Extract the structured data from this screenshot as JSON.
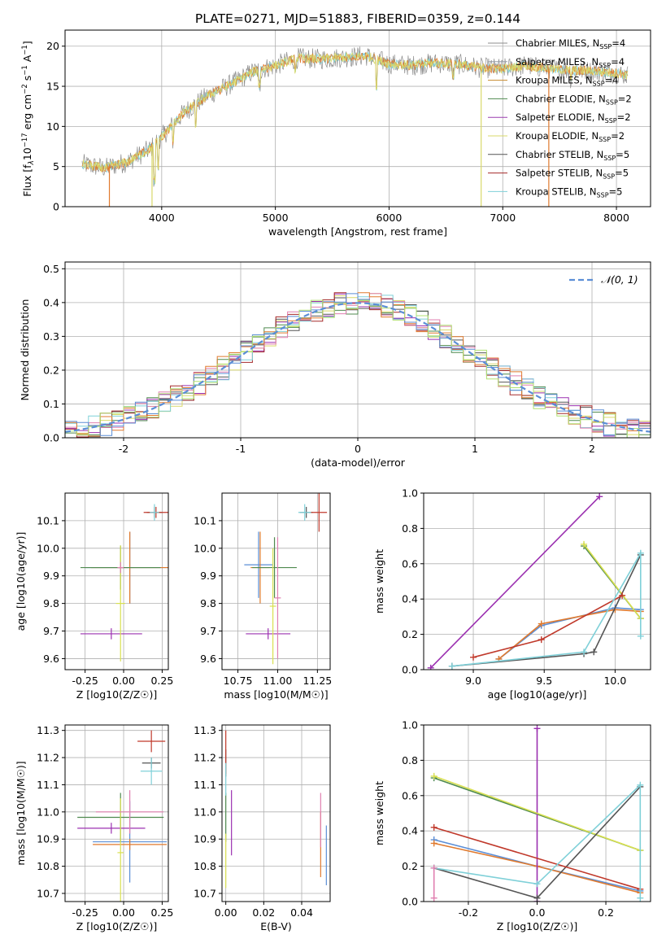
{
  "figure": {
    "title": "PLATE=0271, MJD=51883, FIBERID=0359, z=0.144"
  },
  "colors": {
    "series": [
      "#8c8c8c",
      "#9aa0a8",
      "#c68a2e",
      "#4f8a4f",
      "#9b3fb0",
      "#d9d96a",
      "#555555",
      "#a52a2a",
      "#7fd0d8"
    ],
    "gaussian": "#5b8ed6",
    "hist": [
      "#4f8a4f",
      "#9b30b0",
      "#d9d96a",
      "#555555",
      "#a52a2a",
      "#7fd0d8",
      "#e07fb0",
      "#e07a2e",
      "#5b8ed6",
      "#b0e070"
    ],
    "scatter": [
      "#5b8ed6",
      "#e07a2e",
      "#4f8a4f",
      "#9b30b0",
      "#d9e050",
      "#555555",
      "#c0392b",
      "#7fd0d8",
      "#e07fb0",
      "#b0e070"
    ]
  },
  "chart_data": [
    {
      "id": "spectrum",
      "type": "line",
      "title": "PLATE=0271, MJD=51883, FIBERID=0359, z=0.144",
      "xlabel": "wavelength [Angstrom, rest frame]",
      "ylabel": "Flux [f_λ 10^-17 erg cm^-2 s^-1 A^-1]",
      "xlim": [
        3150,
        8300
      ],
      "ylim": [
        0,
        22
      ],
      "xticks": [
        4000,
        5000,
        6000,
        7000,
        8000
      ],
      "yticks": [
        0,
        5,
        10,
        15,
        20
      ],
      "series": [
        {
          "name": "Chabrier MILES, N_SSP=4"
        },
        {
          "name": "Salpeter MILES, N_SSP=4"
        },
        {
          "name": "Kroupa MILES, N_SSP=4"
        },
        {
          "name": "Chabrier ELODIE, N_SSP=2"
        },
        {
          "name": "Salpeter ELODIE, N_SSP=2"
        },
        {
          "name": "Kroupa ELODIE, N_SSP=2"
        },
        {
          "name": "Chabrier STELIB, N_SSP=5"
        },
        {
          "name": "Salpeter STELIB, N_SSP=5"
        },
        {
          "name": "Kroupa STELIB, N_SSP=5"
        }
      ],
      "continuum": {
        "x": [
          3300,
          3500,
          3700,
          3900,
          4000,
          4200,
          4400,
          4600,
          4800,
          5000,
          5200,
          5400,
          5600,
          5800,
          6000,
          6200,
          6400,
          6600,
          6800,
          7000,
          7200,
          7400,
          7600,
          7800,
          8000,
          8100
        ],
        "y": [
          5.3,
          4.8,
          5.6,
          7.2,
          8.7,
          11.8,
          13.8,
          15.2,
          16.8,
          17.6,
          18.5,
          18.4,
          18.6,
          18.8,
          17.8,
          17.6,
          17.9,
          17.8,
          17.3,
          17.2,
          17.6,
          17.2,
          17.0,
          16.9,
          16.6,
          16.4
        ]
      }
    },
    {
      "id": "residuals",
      "type": "histogram",
      "xlabel": "(data-model)/error",
      "ylabel": "Normed distribution",
      "xlim": [
        -2.5,
        2.5
      ],
      "ylim": [
        0,
        0.52
      ],
      "xticks": [
        -2,
        -1,
        0,
        1,
        2
      ],
      "yticks": [
        0.0,
        0.1,
        0.2,
        0.3,
        0.4,
        0.5
      ],
      "legend": "𝒩(0, 1)",
      "bin_width": 0.1,
      "bin_start": -2.5
    },
    {
      "id": "age-vs-Z",
      "type": "scatter",
      "xlabel": "Z [log10(Z/Z☉)]",
      "ylabel": "age  [log10(age/yr)]",
      "xlim": [
        -0.38,
        0.29
      ],
      "ylim": [
        9.56,
        10.2
      ],
      "xticks": [
        -0.25,
        0.0,
        0.25
      ],
      "yticks": [
        9.6,
        9.7,
        9.8,
        9.9,
        10.0,
        10.1
      ],
      "points": [
        {
          "x": 0.04,
          "y": 9.93,
          "xerr": 0.29,
          "yerr": 0.13
        },
        {
          "x": 0.04,
          "y": 9.93,
          "xerr": 0.25,
          "yerr": 0.13
        },
        {
          "x": -0.02,
          "y": 9.93,
          "xerr": 0.26,
          "yerr": 0.08
        },
        {
          "x": -0.08,
          "y": 9.69,
          "xerr": 0.2,
          "yerr": 0.02
        },
        {
          "x": -0.02,
          "y": 9.8,
          "xerr": 0.03,
          "yerr": 0.21
        },
        {
          "x": 0.2,
          "y": 10.13,
          "xerr": 0.05,
          "yerr": 0.02
        },
        {
          "x": 0.21,
          "y": 10.13,
          "xerr": 0.08,
          "yerr": 0.02
        },
        {
          "x": 0.2,
          "y": 10.13,
          "xerr": 0.03,
          "yerr": 0.03
        },
        {
          "x": -0.02,
          "y": 9.93,
          "xerr": 0.02,
          "yerr": 0.02
        }
      ]
    },
    {
      "id": "age-vs-mass",
      "type": "scatter",
      "xlabel": "mass [log10(M/M☉)]",
      "ylabel": "",
      "xlim": [
        10.65,
        11.33
      ],
      "ylim": [
        9.56,
        10.2
      ],
      "xticks": [
        10.75,
        11.0,
        11.25
      ],
      "yticks": [
        9.6,
        9.7,
        9.8,
        9.9,
        10.0,
        10.1
      ],
      "points": [
        {
          "x": 10.88,
          "y": 9.94,
          "xerr": 0.09,
          "yerr": 0.12
        },
        {
          "x": 10.89,
          "y": 9.93,
          "xerr": 0.06,
          "yerr": 0.13
        },
        {
          "x": 10.98,
          "y": 9.93,
          "xerr": 0.14,
          "yerr": 0.11
        },
        {
          "x": 10.94,
          "y": 9.69,
          "xerr": 0.14,
          "yerr": 0.02
        },
        {
          "x": 10.97,
          "y": 9.79,
          "xerr": 0.02,
          "yerr": 0.21
        },
        {
          "x": 11.18,
          "y": 10.13,
          "xerr": 0.04,
          "yerr": 0.02
        },
        {
          "x": 11.26,
          "y": 10.13,
          "xerr": 0.05,
          "yerr": 0.07
        },
        {
          "x": 11.17,
          "y": 10.13,
          "xerr": 0.04,
          "yerr": 0.03
        },
        {
          "x": 11.0,
          "y": 9.82,
          "xerr": 0.02,
          "yerr": 0.22
        }
      ]
    },
    {
      "id": "weight-vs-age",
      "type": "line",
      "xlabel": "age  [log10(age/yr)]",
      "ylabel": "mass weight",
      "xlim": [
        8.65,
        10.25
      ],
      "ylim": [
        0,
        1
      ],
      "xticks": [
        9.0,
        9.5,
        10.0
      ],
      "yticks": [
        0.0,
        0.2,
        0.4,
        0.6,
        0.8,
        1.0
      ],
      "series": [
        {
          "x": [
            9.18,
            9.48,
            10.0,
            10.18
          ],
          "y": [
            0.06,
            0.25,
            0.35,
            0.34
          ]
        },
        {
          "x": [
            9.18,
            9.48,
            10.0,
            10.18
          ],
          "y": [
            0.06,
            0.26,
            0.34,
            0.33
          ]
        },
        {
          "x": [
            9.78,
            10.18
          ],
          "y": [
            0.7,
            0.29
          ]
        },
        {
          "x": [
            8.7,
            9.89
          ],
          "y": [
            0.01,
            0.98
          ]
        },
        {
          "x": [
            9.78,
            10.18
          ],
          "y": [
            0.71,
            0.29
          ]
        },
        {
          "x": [
            8.85,
            9.78,
            9.85,
            10.18
          ],
          "y": [
            0.02,
            0.09,
            0.1,
            0.65
          ]
        },
        {
          "x": [
            9.0,
            9.48,
            10.05
          ],
          "y": [
            0.07,
            0.17,
            0.42
          ]
        },
        {
          "x": [
            8.85,
            9.78,
            10.18,
            10.18
          ],
          "y": [
            0.02,
            0.1,
            0.66,
            0.19
          ]
        }
      ]
    },
    {
      "id": "mass-vs-Z",
      "type": "scatter",
      "xlabel": "Z [log10(Z/Z☉)]",
      "ylabel": "mass [log10(M/M☉)]",
      "xlim": [
        -0.38,
        0.29
      ],
      "ylim": [
        10.67,
        11.32
      ],
      "xticks": [
        -0.25,
        0.0,
        0.25
      ],
      "yticks": [
        10.7,
        10.8,
        10.9,
        11.0,
        11.1,
        11.2,
        11.3
      ],
      "points": [
        {
          "x": 0.04,
          "y": 10.89,
          "xerr": 0.24,
          "yerr": 0.15
        },
        {
          "x": 0.04,
          "y": 10.88,
          "xerr": 0.24,
          "yerr": 0.02
        },
        {
          "x": -0.02,
          "y": 10.98,
          "xerr": 0.28,
          "yerr": 0.09
        },
        {
          "x": -0.08,
          "y": 10.94,
          "xerr": 0.22,
          "yerr": 0.02
        },
        {
          "x": -0.02,
          "y": 10.85,
          "xerr": 0.02,
          "yerr": 0.2
        },
        {
          "x": 0.18,
          "y": 11.18,
          "xerr": 0.06,
          "yerr": 0.02
        },
        {
          "x": 0.18,
          "y": 11.26,
          "xerr": 0.09,
          "yerr": 0.04
        },
        {
          "x": 0.18,
          "y": 11.15,
          "xerr": 0.07,
          "yerr": 0.05
        },
        {
          "x": 0.04,
          "y": 11.0,
          "xerr": 0.22,
          "yerr": 0.08
        }
      ]
    },
    {
      "id": "mass-vs-ebv",
      "type": "scatter",
      "xlabel": "E(B-V)",
      "ylabel": "",
      "xlim": [
        -0.002,
        0.055
      ],
      "ylim": [
        10.67,
        11.32
      ],
      "xticks": [
        0.0,
        0.02,
        0.04
      ],
      "yticks": [
        10.7,
        10.8,
        10.9,
        11.0,
        11.1,
        11.2,
        11.3
      ],
      "points": [
        {
          "x": 0.053,
          "y": 10.84,
          "yerr": 0.11
        },
        {
          "x": 0.05,
          "y": 10.88,
          "yerr": 0.12
        },
        {
          "x": 0.0,
          "y": 10.98,
          "yerr": 0.09
        },
        {
          "x": 0.003,
          "y": 10.96,
          "yerr": 0.12
        },
        {
          "x": 0.0,
          "y": 10.82,
          "yerr": 0.1
        },
        {
          "x": 0.0,
          "y": 11.18,
          "yerr": 0.05
        },
        {
          "x": 0.0,
          "y": 11.22,
          "yerr": 0.08
        },
        {
          "x": 0.0,
          "y": 11.12,
          "yerr": 0.06
        },
        {
          "x": 0.05,
          "y": 10.97,
          "yerr": 0.1
        }
      ]
    },
    {
      "id": "weight-vs-Z",
      "type": "line",
      "xlabel": "Z [log10(Z/Z☉)]",
      "ylabel": "mass weight",
      "xlim": [
        -0.33,
        0.33
      ],
      "ylim": [
        0,
        1
      ],
      "xticks": [
        -0.2,
        0.0,
        0.2
      ],
      "yticks": [
        0.0,
        0.2,
        0.4,
        0.6,
        0.8,
        1.0
      ],
      "series": [
        {
          "x": [
            -0.3,
            0.0,
            0.3
          ],
          "y": [
            0.35,
            0.2,
            0.06
          ]
        },
        {
          "x": [
            -0.3,
            0.0,
            0.3
          ],
          "y": [
            0.33,
            0.2,
            0.05
          ]
        },
        {
          "x": [
            -0.3,
            0.3
          ],
          "y": [
            0.7,
            0.29
          ]
        },
        {
          "x": [
            0.0,
            0.0
          ],
          "y": [
            0.0,
            0.98
          ]
        },
        {
          "x": [
            -0.3,
            0.3
          ],
          "y": [
            0.71,
            0.29
          ]
        },
        {
          "x": [
            -0.3,
            0.0,
            0.3
          ],
          "y": [
            0.19,
            0.02,
            0.65
          ]
        },
        {
          "x": [
            -0.3,
            0.3
          ],
          "y": [
            0.42,
            0.07
          ]
        },
        {
          "x": [
            -0.3,
            0.0,
            0.3,
            0.3
          ],
          "y": [
            0.19,
            0.1,
            0.66,
            0.02
          ]
        },
        {
          "x": [
            -0.3,
            -0.3
          ],
          "y": [
            0.02,
            0.19
          ]
        }
      ]
    }
  ]
}
